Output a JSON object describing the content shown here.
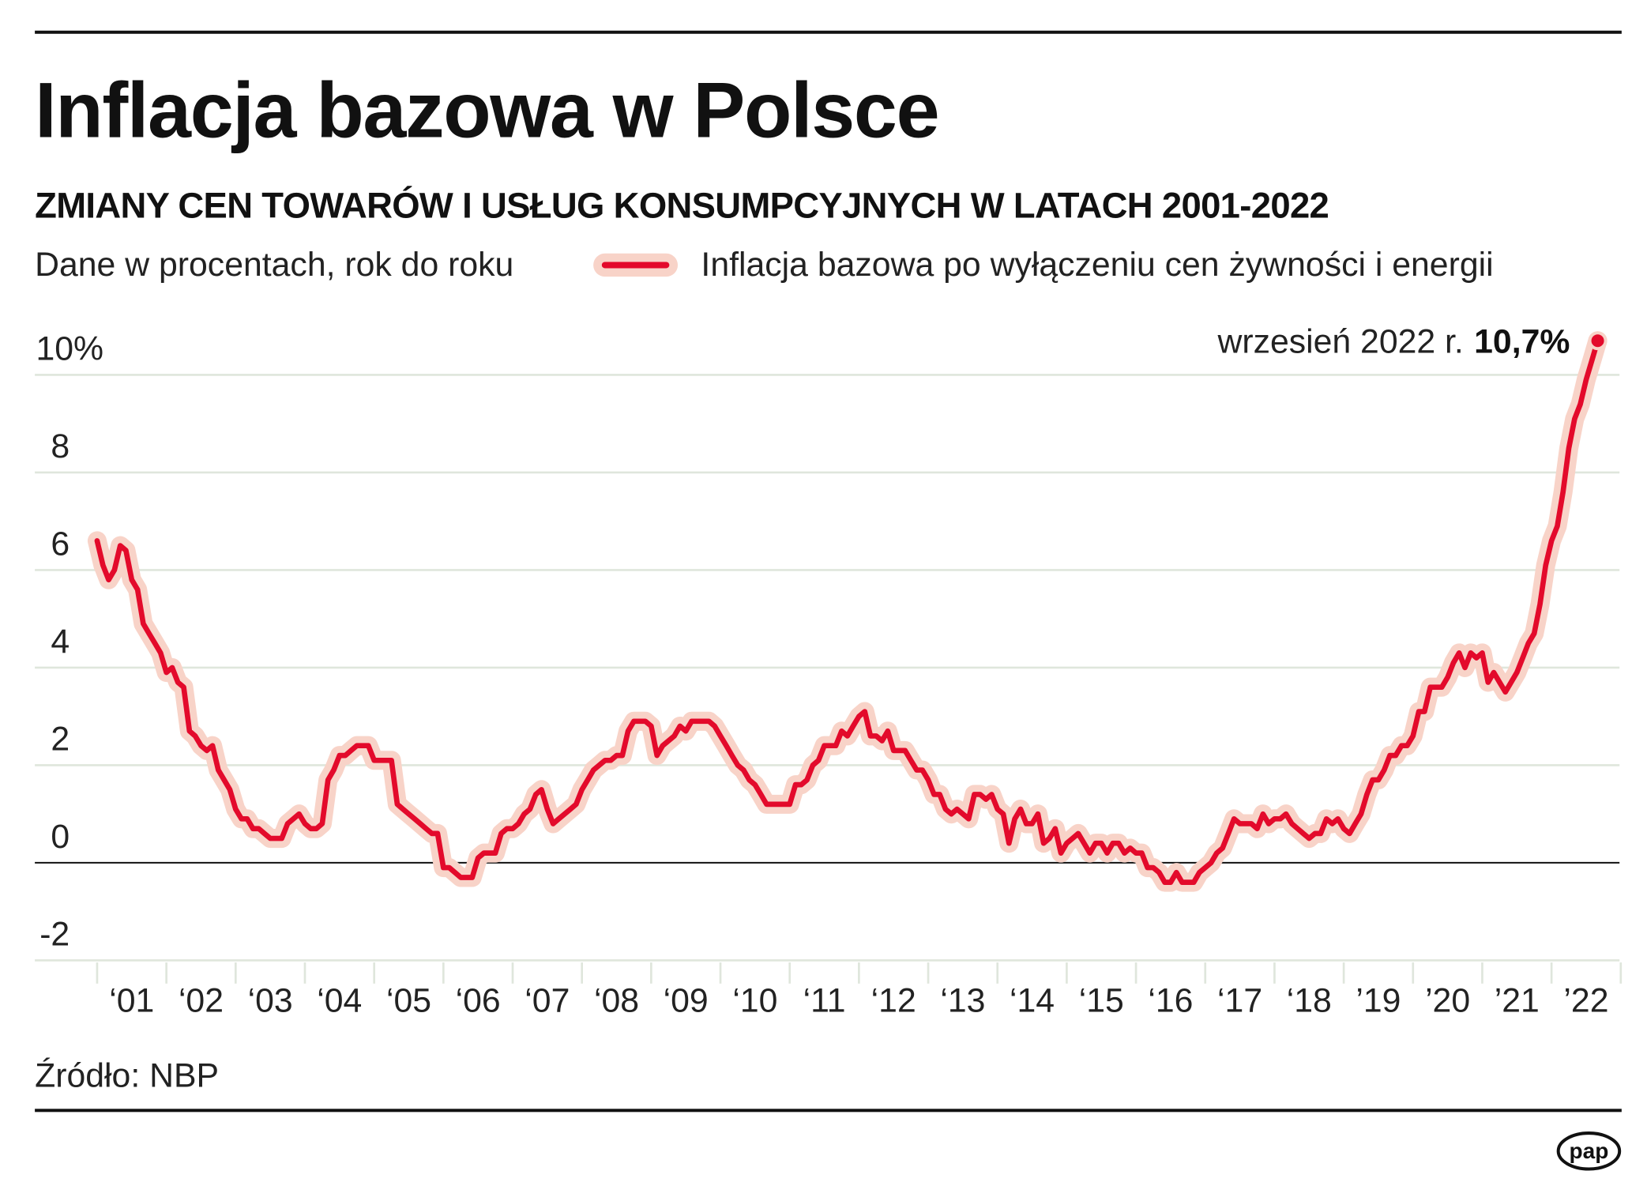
{
  "title": "Inflacja bazowa w Polsce",
  "subtitle": "ZMIANY CEN TOWARÓW I USŁUG KONSUMPCYJNYCH W LATACH 2001-2022",
  "units_note": "Dane w procentach, rok do roku",
  "source": "Źródło: NBP",
  "logo": "pap",
  "colors": {
    "line": "#e30a2b",
    "glow": "#f8d3c8",
    "grid": "#dfe6dc",
    "zero": "#111111"
  },
  "chart_data": {
    "type": "line",
    "title": "Inflacja bazowa w Polsce",
    "subtitle": "ZMIANY CEN TOWARÓW I USŁUG KONSUMPCYJNYCH W LATACH 2001-2022",
    "ylabel": "Dane w procentach, rok do roku",
    "ylim": [
      -2,
      10
    ],
    "yticks": [
      -2,
      0,
      2,
      4,
      6,
      8,
      10
    ],
    "ytick_labels": [
      "-2",
      "0",
      "2",
      "4",
      "6",
      "8",
      "10%"
    ],
    "xtick_labels": [
      "‘01",
      "‘02",
      "‘03",
      "‘04",
      "‘05",
      "‘06",
      "‘07",
      "‘08",
      "‘09",
      "‘10",
      "‘11",
      "‘12",
      "‘13",
      "‘14",
      "‘15",
      "‘16",
      "‘17",
      "‘18",
      "’19",
      "’20",
      "’21",
      "’22"
    ],
    "x_start": "2001-01",
    "x_end": "2022-09",
    "frequency": "monthly",
    "grid": true,
    "legend": "top",
    "series": [
      {
        "name": "Inflacja bazowa po wyłączeniu cen żywności i energii",
        "values": [
          6.6,
          6.1,
          5.8,
          6.0,
          6.5,
          6.4,
          5.8,
          5.6,
          4.9,
          4.7,
          4.5,
          4.3,
          3.9,
          4.0,
          3.7,
          3.6,
          2.7,
          2.6,
          2.4,
          2.3,
          2.4,
          1.9,
          1.7,
          1.5,
          1.1,
          0.9,
          0.9,
          0.7,
          0.7,
          0.6,
          0.5,
          0.5,
          0.5,
          0.8,
          0.9,
          1.0,
          0.8,
          0.7,
          0.7,
          0.8,
          1.7,
          1.9,
          2.2,
          2.2,
          2.3,
          2.4,
          2.4,
          2.4,
          2.1,
          2.1,
          2.1,
          2.1,
          1.2,
          1.1,
          1.0,
          0.9,
          0.8,
          0.7,
          0.6,
          0.6,
          -0.1,
          -0.1,
          -0.2,
          -0.3,
          -0.3,
          -0.3,
          0.1,
          0.2,
          0.2,
          0.2,
          0.6,
          0.7,
          0.7,
          0.8,
          1.0,
          1.1,
          1.4,
          1.5,
          1.1,
          0.8,
          0.9,
          1.0,
          1.1,
          1.2,
          1.5,
          1.7,
          1.9,
          2.0,
          2.1,
          2.1,
          2.2,
          2.2,
          2.7,
          2.9,
          2.9,
          2.9,
          2.8,
          2.2,
          2.4,
          2.5,
          2.6,
          2.8,
          2.7,
          2.9,
          2.9,
          2.9,
          2.9,
          2.8,
          2.6,
          2.4,
          2.2,
          2.0,
          1.9,
          1.7,
          1.6,
          1.4,
          1.2,
          1.2,
          1.2,
          1.2,
          1.2,
          1.6,
          1.6,
          1.7,
          2.0,
          2.1,
          2.4,
          2.4,
          2.4,
          2.7,
          2.6,
          2.8,
          3.0,
          3.1,
          2.6,
          2.6,
          2.5,
          2.7,
          2.3,
          2.3,
          2.3,
          2.1,
          1.9,
          1.9,
          1.7,
          1.4,
          1.4,
          1.1,
          1.0,
          1.1,
          1.0,
          0.9,
          1.4,
          1.4,
          1.3,
          1.4,
          1.1,
          1.0,
          0.4,
          0.9,
          1.1,
          0.8,
          0.8,
          1.0,
          0.4,
          0.5,
          0.7,
          0.2,
          0.4,
          0.5,
          0.6,
          0.4,
          0.2,
          0.4,
          0.4,
          0.2,
          0.4,
          0.4,
          0.2,
          0.3,
          0.2,
          0.2,
          -0.1,
          -0.1,
          -0.2,
          -0.4,
          -0.4,
          -0.2,
          -0.4,
          -0.4,
          -0.4,
          -0.2,
          -0.1,
          0.0,
          0.2,
          0.3,
          0.6,
          0.9,
          0.8,
          0.8,
          0.8,
          0.7,
          1.0,
          0.8,
          0.9,
          0.9,
          1.0,
          0.8,
          0.7,
          0.6,
          0.5,
          0.6,
          0.6,
          0.9,
          0.8,
          0.9,
          0.7,
          0.6,
          0.8,
          1.0,
          1.4,
          1.7,
          1.7,
          1.9,
          2.2,
          2.2,
          2.4,
          2.4,
          2.6,
          3.1,
          3.1,
          3.6,
          3.6,
          3.6,
          3.8,
          4.1,
          4.3,
          4.0,
          4.3,
          4.2,
          4.3,
          3.7,
          3.9,
          3.7,
          3.5,
          3.7,
          3.9,
          4.2,
          4.5,
          4.7,
          5.3,
          6.1,
          6.6,
          6.9,
          7.6,
          8.5,
          9.1,
          9.4,
          9.9,
          10.3,
          10.7
        ]
      }
    ],
    "annotation": {
      "label": "wrzesień 2022 r.",
      "value": "10,7%"
    }
  }
}
